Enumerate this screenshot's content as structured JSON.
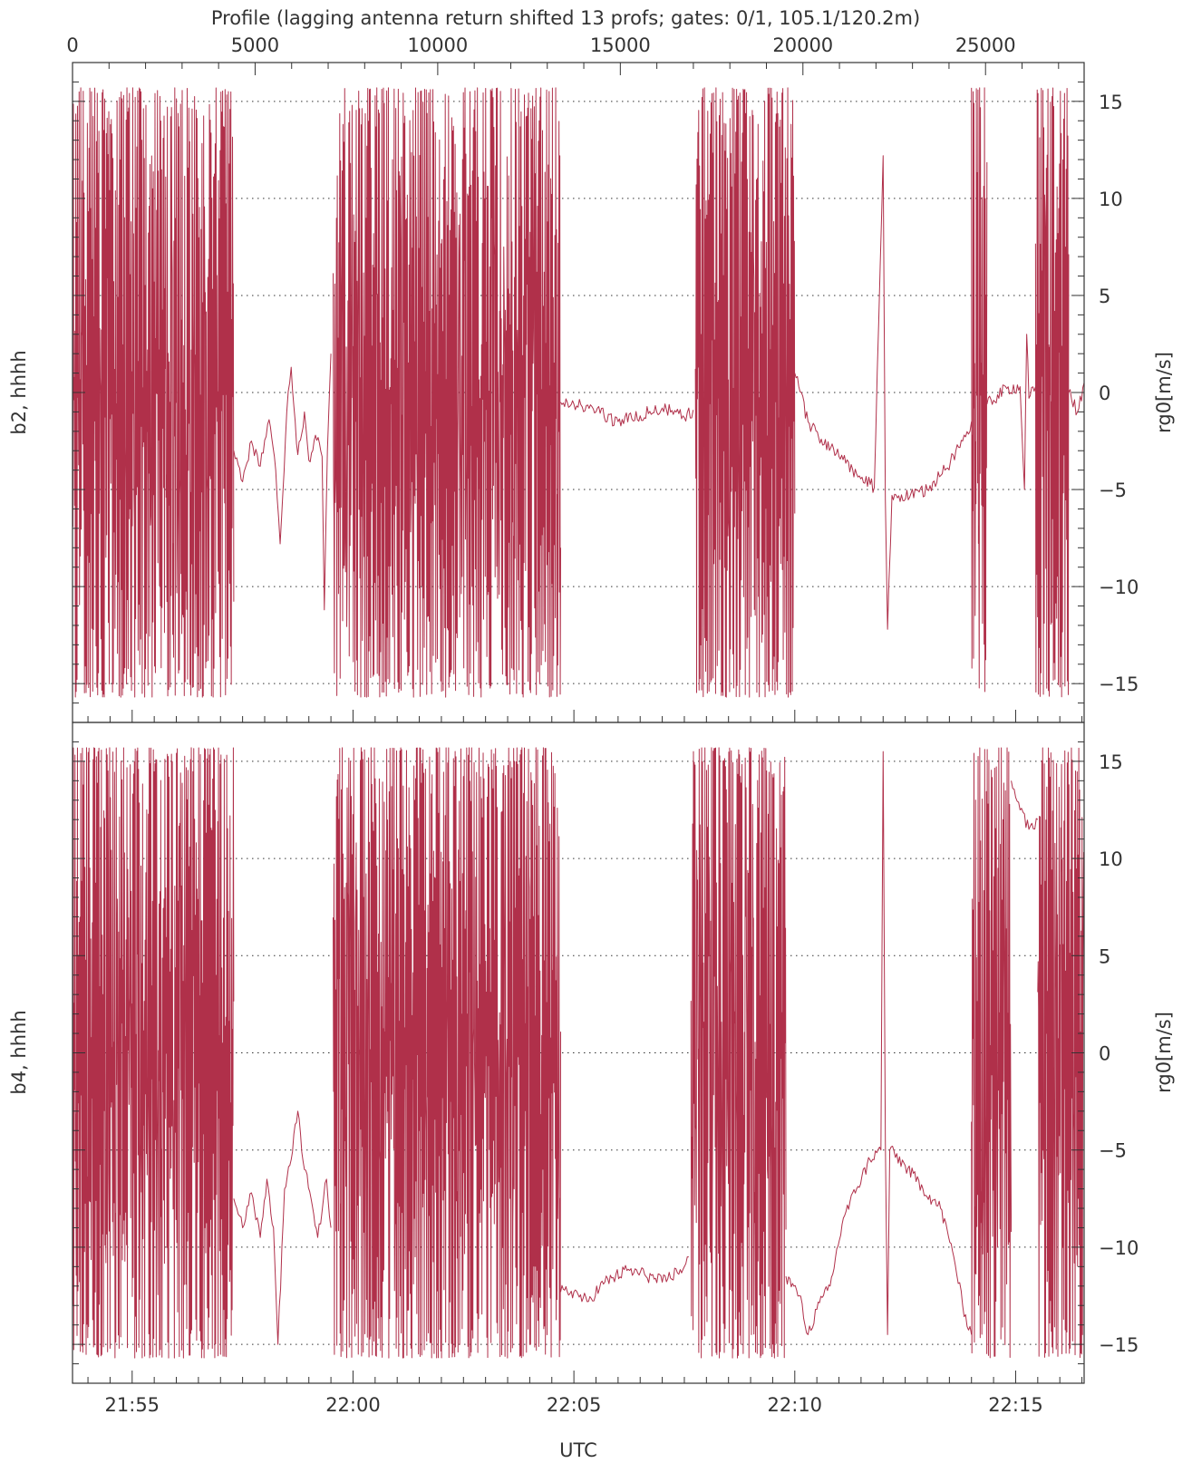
{
  "chart_data": {
    "title": "Profile (lagging antenna return shifted 13 profs; gates: 0/1, 105.1/120.2m)",
    "top_axis": {
      "range": [
        0,
        27700
      ],
      "tick_values": [
        0,
        5000,
        10000,
        15000,
        20000,
        25000
      ],
      "tick_labels": [
        "0",
        "5000",
        "10000",
        "15000",
        "20000",
        "25000"
      ]
    },
    "x_axis": {
      "label": "UTC",
      "range_minutes": [
        1313.65,
        1336.55
      ],
      "tick_minutes": [
        1315,
        1320,
        1325,
        1330,
        1335
      ],
      "tick_labels": [
        "21:55",
        "22:00",
        "22:05",
        "22:10",
        "22:15"
      ]
    },
    "y_axis": {
      "label": "rg0[m/s]",
      "range": [
        -17,
        17
      ],
      "tick_values": [
        -15,
        -10,
        -5,
        0,
        5,
        10,
        15
      ],
      "tick_labels": [
        "−15",
        "−10",
        "−5",
        "0",
        "5",
        "10",
        "15"
      ],
      "grid": true
    },
    "panels": [
      {
        "label": "b2, hhhh",
        "type": "line",
        "color": "#b0304a",
        "segments": [
          {
            "kind": "noise",
            "t": [
              1313.65,
              1317.3
            ],
            "low": -15.7,
            "high": 15.7
          },
          {
            "kind": "path",
            "points": [
              [
                1317.3,
                -3.0
              ],
              [
                1317.5,
                -4.6
              ],
              [
                1317.7,
                -2.5
              ],
              [
                1317.9,
                -3.8
              ],
              [
                1318.1,
                -1.4
              ],
              [
                1318.25,
                -4.0
              ],
              [
                1318.35,
                -7.8
              ],
              [
                1318.5,
                -1.0
              ],
              [
                1318.6,
                1.3
              ],
              [
                1318.75,
                -3.2
              ],
              [
                1318.9,
                -1.0
              ],
              [
                1319.0,
                -3.5
              ],
              [
                1319.15,
                -2.2
              ],
              [
                1319.3,
                -3.3
              ],
              [
                1319.35,
                -11.2
              ],
              [
                1319.42,
                -3.0
              ],
              [
                1319.5,
                2.0
              ]
            ]
          },
          {
            "kind": "noise",
            "t": [
              1319.55,
              1324.7
            ],
            "low": -15.7,
            "high": 15.7
          },
          {
            "kind": "path",
            "points": [
              [
                1324.7,
                -0.5
              ],
              [
                1325.0,
                -0.6
              ],
              [
                1325.5,
                -1.0
              ],
              [
                1326.0,
                -1.5
              ],
              [
                1326.5,
                -1.2
              ],
              [
                1327.0,
                -0.8
              ],
              [
                1327.5,
                -1.3
              ],
              [
                1327.7,
                -0.9
              ]
            ]
          },
          {
            "kind": "noise",
            "t": [
              1327.75,
              1330.0
            ],
            "low": -15.7,
            "high": 15.7
          },
          {
            "kind": "path",
            "points": [
              [
                1330.0,
                1.0
              ],
              [
                1330.3,
                -1.5
              ],
              [
                1330.6,
                -2.4
              ],
              [
                1331.0,
                -3.3
              ],
              [
                1331.4,
                -4.2
              ],
              [
                1331.8,
                -4.9
              ],
              [
                1332.0,
                12.2
              ],
              [
                1332.05,
                -5.5
              ],
              [
                1332.1,
                -12.2
              ],
              [
                1332.2,
                -5.3
              ],
              [
                1332.6,
                -5.4
              ],
              [
                1333.0,
                -5.0
              ],
              [
                1333.4,
                -4.0
              ],
              [
                1333.8,
                -2.5
              ],
              [
                1334.0,
                -1.5
              ]
            ]
          },
          {
            "kind": "noise",
            "t": [
              1334.0,
              1334.35
            ],
            "low": -15.7,
            "high": 15.7
          },
          {
            "kind": "path",
            "points": [
              [
                1334.35,
                -0.6
              ],
              [
                1334.8,
                0.2
              ],
              [
                1335.1,
                0.3
              ],
              [
                1335.2,
                -5.0
              ],
              [
                1335.25,
                3.0
              ],
              [
                1335.3,
                -0.3
              ],
              [
                1335.45,
                0.3
              ]
            ]
          },
          {
            "kind": "noise",
            "t": [
              1335.45,
              1336.2
            ],
            "low": -15.7,
            "high": 15.7
          },
          {
            "kind": "path",
            "points": [
              [
                1336.2,
                0.0
              ],
              [
                1336.4,
                -1.0
              ],
              [
                1336.55,
                0.5
              ]
            ]
          }
        ]
      },
      {
        "label": "b4, hhhh",
        "type": "line",
        "color": "#b0304a",
        "segments": [
          {
            "kind": "noise",
            "t": [
              1313.65,
              1317.3
            ],
            "low": -15.7,
            "high": 15.7
          },
          {
            "kind": "path",
            "points": [
              [
                1317.3,
                -7.5
              ],
              [
                1317.5,
                -9.0
              ],
              [
                1317.7,
                -7.2
              ],
              [
                1317.9,
                -9.5
              ],
              [
                1318.05,
                -6.5
              ],
              [
                1318.2,
                -9.0
              ],
              [
                1318.3,
                -15.0
              ],
              [
                1318.45,
                -7.0
              ],
              [
                1318.6,
                -5.5
              ],
              [
                1318.75,
                -3.0
              ],
              [
                1318.9,
                -6.0
              ],
              [
                1319.05,
                -7.5
              ],
              [
                1319.2,
                -9.5
              ],
              [
                1319.4,
                -6.5
              ],
              [
                1319.5,
                -9.0
              ]
            ]
          },
          {
            "kind": "noise",
            "t": [
              1319.55,
              1324.7
            ],
            "low": -15.7,
            "high": 15.7
          },
          {
            "kind": "path",
            "points": [
              [
                1324.7,
                -12.3
              ],
              [
                1325.0,
                -12.3
              ],
              [
                1325.3,
                -12.8
              ],
              [
                1325.7,
                -11.8
              ],
              [
                1326.2,
                -11.2
              ],
              [
                1326.6,
                -11.4
              ],
              [
                1327.0,
                -11.8
              ],
              [
                1327.5,
                -11.0
              ],
              [
                1327.6,
                -10.5
              ]
            ]
          },
          {
            "kind": "noise",
            "t": [
              1327.65,
              1329.8
            ],
            "low": -15.7,
            "high": 15.7
          },
          {
            "kind": "path",
            "points": [
              [
                1329.8,
                -11.5
              ],
              [
                1330.1,
                -12.5
              ],
              [
                1330.3,
                -14.5
              ],
              [
                1330.5,
                -13.2
              ],
              [
                1330.8,
                -12.0
              ],
              [
                1331.1,
                -8.5
              ],
              [
                1331.4,
                -7.0
              ],
              [
                1331.7,
                -5.5
              ],
              [
                1331.95,
                -5.0
              ],
              [
                1332.0,
                15.5
              ],
              [
                1332.05,
                -4.5
              ],
              [
                1332.1,
                -14.5
              ],
              [
                1332.15,
                -5.0
              ],
              [
                1332.5,
                -5.8
              ],
              [
                1332.9,
                -7.0
              ],
              [
                1333.3,
                -8.0
              ],
              [
                1333.6,
                -10.5
              ],
              [
                1333.8,
                -13.0
              ],
              [
                1334.0,
                -14.5
              ]
            ]
          },
          {
            "kind": "noise",
            "t": [
              1334.0,
              1334.9
            ],
            "low": -15.7,
            "high": 15.7
          },
          {
            "kind": "path",
            "points": [
              [
                1334.9,
                14.0
              ],
              [
                1335.1,
                12.5
              ],
              [
                1335.3,
                11.5
              ],
              [
                1335.5,
                12.0
              ]
            ]
          },
          {
            "kind": "noise",
            "t": [
              1335.5,
              1336.55
            ],
            "low": -15.7,
            "high": 15.7
          }
        ]
      }
    ]
  }
}
